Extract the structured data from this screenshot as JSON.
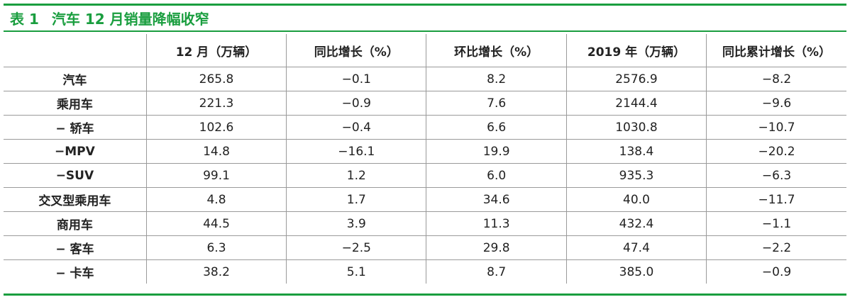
{
  "title": {
    "number": "表 1",
    "text": "汽车 12 月销量降幅收窄"
  },
  "table": {
    "headers": [
      "",
      "12 月（万辆）",
      "同比增长（%）",
      "环比增长（%）",
      "2019 年（万辆）",
      "同比累计增长（%）"
    ],
    "rows": [
      [
        "汽车",
        "265.8",
        "−0.1",
        "8.2",
        "2576.9",
        "−8.2"
      ],
      [
        "乘用车",
        "221.3",
        "−0.9",
        "7.6",
        "2144.4",
        "−9.6"
      ],
      [
        "− 轿车",
        "102.6",
        "−0.4",
        "6.6",
        "1030.8",
        "−10.7"
      ],
      [
        "−MPV",
        "14.8",
        "−16.1",
        "19.9",
        "138.4",
        "−20.2"
      ],
      [
        "−SUV",
        "99.1",
        "1.2",
        "6.0",
        "935.3",
        "−6.3"
      ],
      [
        "交叉型乘用车",
        "4.8",
        "1.7",
        "34.6",
        "40.0",
        "−11.7"
      ],
      [
        "商用车",
        "44.5",
        "3.9",
        "11.3",
        "432.4",
        "−1.1"
      ],
      [
        "− 客车",
        "6.3",
        "−2.5",
        "29.8",
        "47.4",
        "−2.2"
      ],
      [
        "− 卡车",
        "38.2",
        "5.1",
        "8.7",
        "385.0",
        "−0.9"
      ]
    ]
  },
  "colors": {
    "accent": "#1a9e3f",
    "grid": "#9a9a9a",
    "text": "#222222"
  }
}
